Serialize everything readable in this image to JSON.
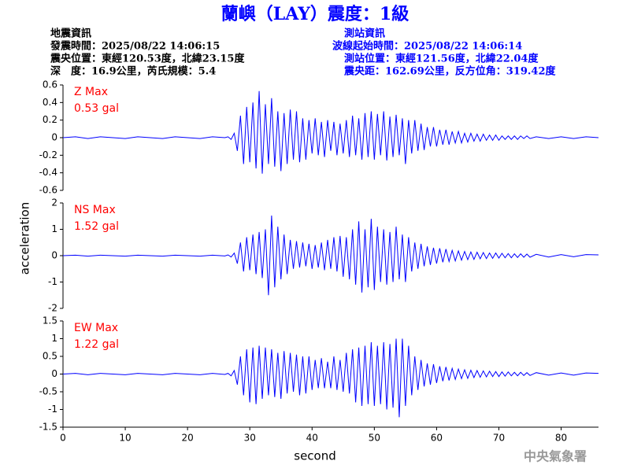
{
  "title": "蘭嶼（LAY）震度：1級",
  "info_left": [
    "地震資訊",
    "發震時間：2025/08/22 14:06:15",
    "震央位置：東經120.53度，北緯23.15度",
    "深　度：16.9公里，芮氏規模：5.4"
  ],
  "info_right": [
    "測站資訊",
    "波線起始時間：2025/08/22 14:06:14",
    "測站位置：東經121.56度，北緯22.04度",
    "震央距：162.69公里，反方位角：319.42度"
  ],
  "ylabel": "acceleration",
  "xlabel": "second",
  "credit": "中央氣象署",
  "chart_data": [
    {
      "type": "line",
      "label": "Z Max",
      "max_label": "0.53 gal",
      "color": "#0000ff",
      "xlim": [
        0,
        86
      ],
      "ylim": [
        -0.6,
        0.6
      ],
      "yticks": [
        -0.6,
        -0.4,
        -0.2,
        0,
        0.2,
        0.4,
        0.6
      ],
      "x": [
        0,
        2,
        4,
        6,
        8,
        10,
        12,
        14,
        16,
        18,
        20,
        22,
        24,
        26,
        26.5,
        27,
        27.5,
        28,
        28.5,
        29,
        29.5,
        30,
        30.5,
        31,
        31.5,
        32,
        32.5,
        33,
        33.5,
        34,
        34.5,
        35,
        35.5,
        36,
        36.5,
        37,
        37.5,
        38,
        38.5,
        39,
        39.5,
        40,
        40.5,
        41,
        41.5,
        42,
        42.5,
        43,
        43.5,
        44,
        44.5,
        45,
        45.5,
        46,
        46.5,
        47,
        47.5,
        48,
        48.5,
        49,
        49.5,
        50,
        50.5,
        51,
        51.5,
        52,
        52.5,
        53,
        53.5,
        54,
        54.5,
        55,
        55.5,
        56,
        56.5,
        57,
        57.5,
        58,
        58.5,
        59,
        59.5,
        60,
        60.5,
        61,
        61.5,
        62,
        62.5,
        63,
        63.5,
        64,
        64.5,
        65,
        65.5,
        66,
        66.5,
        67,
        67.5,
        68,
        68.5,
        69,
        69.5,
        70,
        70.5,
        71,
        71.5,
        72,
        72.5,
        73,
        73.5,
        74,
        74.5,
        75,
        76,
        78,
        80,
        82,
        84,
        86
      ],
      "values": [
        0,
        0.01,
        -0.01,
        0.01,
        0,
        -0.01,
        0.01,
        0,
        -0.01,
        0.01,
        0,
        -0.01,
        0.01,
        0,
        0.01,
        -0.02,
        0.05,
        -0.15,
        0.25,
        -0.3,
        0.35,
        -0.28,
        0.4,
        -0.35,
        0.53,
        -0.41,
        0.38,
        -0.3,
        0.45,
        -0.33,
        0.3,
        -0.38,
        0.28,
        -0.3,
        0.32,
        -0.25,
        0.3,
        -0.28,
        0.22,
        -0.25,
        0.2,
        -0.18,
        0.22,
        -0.2,
        0.18,
        -0.22,
        0.2,
        -0.15,
        0.18,
        -0.2,
        0.16,
        -0.18,
        0.2,
        -0.22,
        0.25,
        -0.2,
        0.22,
        -0.25,
        0.28,
        -0.22,
        0.3,
        -0.25,
        0.27,
        -0.2,
        0.3,
        -0.26,
        0.24,
        -0.22,
        0.26,
        -0.2,
        0.22,
        -0.3,
        0.2,
        -0.18,
        0.2,
        -0.15,
        0.16,
        -0.14,
        0.12,
        -0.1,
        0.12,
        -0.1,
        0.09,
        -0.08,
        0.09,
        -0.08,
        0.07,
        -0.06,
        0.07,
        -0.06,
        0.05,
        -0.05,
        0.05,
        -0.04,
        0.04,
        -0.04,
        0.04,
        -0.03,
        0.03,
        -0.03,
        0.03,
        -0.03,
        0.02,
        -0.02,
        0.02,
        -0.02,
        0.02,
        -0.02,
        0.02,
        -0.01,
        0.02,
        -0.01,
        0.01,
        -0.01,
        0.01,
        -0.01,
        0.01,
        0
      ]
    },
    {
      "type": "line",
      "label": "NS Max",
      "max_label": "1.52 gal",
      "color": "#0000ff",
      "xlim": [
        0,
        86
      ],
      "ylim": [
        -2,
        2
      ],
      "yticks": [
        -2,
        -1,
        0,
        1,
        2
      ],
      "x": [
        0,
        2,
        4,
        6,
        8,
        10,
        12,
        14,
        16,
        18,
        20,
        22,
        24,
        26,
        26.5,
        27,
        27.5,
        28,
        28.5,
        29,
        29.5,
        30,
        30.5,
        31,
        31.5,
        32,
        32.5,
        33,
        33.5,
        34,
        34.5,
        35,
        35.5,
        36,
        36.5,
        37,
        37.5,
        38,
        38.5,
        39,
        39.5,
        40,
        40.5,
        41,
        41.5,
        42,
        42.5,
        43,
        43.5,
        44,
        44.5,
        45,
        45.5,
        46,
        46.5,
        47,
        47.5,
        48,
        48.5,
        49,
        49.5,
        50,
        50.5,
        51,
        51.5,
        52,
        52.5,
        53,
        53.5,
        54,
        54.5,
        55,
        55.5,
        56,
        56.5,
        57,
        57.5,
        58,
        58.5,
        59,
        59.5,
        60,
        60.5,
        61,
        61.5,
        62,
        62.5,
        63,
        63.5,
        64,
        64.5,
        65,
        65.5,
        66,
        66.5,
        67,
        67.5,
        68,
        68.5,
        69,
        69.5,
        70,
        70.5,
        71,
        71.5,
        72,
        72.5,
        73,
        73.5,
        74,
        74.5,
        75,
        76,
        78,
        80,
        82,
        84,
        86
      ],
      "values": [
        0,
        0.02,
        -0.02,
        0.02,
        0,
        -0.02,
        0.02,
        0,
        -0.02,
        0.02,
        0,
        -0.02,
        0.02,
        -0.01,
        0.03,
        -0.05,
        0.1,
        -0.3,
        0.5,
        -0.6,
        0.7,
        -0.55,
        0.8,
        -0.7,
        0.9,
        -0.85,
        1.0,
        -1.5,
        1.52,
        -1.2,
        1.1,
        -0.9,
        0.8,
        -0.7,
        0.6,
        -0.5,
        0.55,
        -0.45,
        0.5,
        -0.4,
        0.45,
        -0.5,
        0.4,
        -0.45,
        0.5,
        -0.55,
        0.6,
        -0.5,
        0.7,
        -0.6,
        0.75,
        -0.8,
        0.7,
        -0.9,
        1.0,
        -1.1,
        1.3,
        -1.4,
        1.0,
        -1.2,
        1.4,
        -1.3,
        1.1,
        -1.0,
        1.0,
        -1.1,
        0.9,
        -1.0,
        1.1,
        -0.9,
        0.8,
        -1.0,
        0.7,
        -0.6,
        0.5,
        -0.5,
        0.45,
        -0.4,
        0.35,
        -0.35,
        0.3,
        -0.3,
        0.28,
        -0.25,
        0.25,
        -0.22,
        0.2,
        -0.2,
        0.18,
        -0.17,
        0.16,
        -0.15,
        0.14,
        -0.14,
        0.13,
        -0.12,
        0.12,
        -0.11,
        0.1,
        -0.1,
        0.1,
        -0.09,
        0.09,
        -0.08,
        0.08,
        -0.08,
        0.07,
        -0.07,
        0.07,
        -0.06,
        0.06,
        -0.06,
        0.05,
        -0.05,
        0.04,
        -0.04,
        0.04,
        0.03
      ]
    },
    {
      "type": "line",
      "label": "EW Max",
      "max_label": "1.22 gal",
      "color": "#0000ff",
      "xlim": [
        0,
        86
      ],
      "ylim": [
        -1.5,
        1.5
      ],
      "yticks": [
        -1.5,
        -1,
        -0.5,
        0,
        0.5,
        1,
        1.5
      ],
      "xticks": [
        0,
        10,
        20,
        30,
        40,
        50,
        60,
        70,
        80
      ],
      "x": [
        0,
        2,
        4,
        6,
        8,
        10,
        12,
        14,
        16,
        18,
        20,
        22,
        24,
        26,
        26.5,
        27,
        27.5,
        28,
        28.5,
        29,
        29.5,
        30,
        30.5,
        31,
        31.5,
        32,
        32.5,
        33,
        33.5,
        34,
        34.5,
        35,
        35.5,
        36,
        36.5,
        37,
        37.5,
        38,
        38.5,
        39,
        39.5,
        40,
        40.5,
        41,
        41.5,
        42,
        42.5,
        43,
        43.5,
        44,
        44.5,
        45,
        45.5,
        46,
        46.5,
        47,
        47.5,
        48,
        48.5,
        49,
        49.5,
        50,
        50.5,
        51,
        51.5,
        52,
        52.5,
        53,
        53.5,
        54,
        54.5,
        55,
        55.5,
        56,
        56.5,
        57,
        57.5,
        58,
        58.5,
        59,
        59.5,
        60,
        60.5,
        61,
        61.5,
        62,
        62.5,
        63,
        63.5,
        64,
        64.5,
        65,
        65.5,
        66,
        66.5,
        67,
        67.5,
        68,
        68.5,
        69,
        69.5,
        70,
        70.5,
        71,
        71.5,
        72,
        72.5,
        73,
        73.5,
        74,
        74.5,
        75,
        76,
        78,
        80,
        82,
        84,
        86
      ],
      "values": [
        0,
        0.02,
        -0.02,
        0.02,
        0,
        -0.02,
        0.02,
        0,
        -0.02,
        0.02,
        0,
        -0.02,
        0.02,
        -0.01,
        0.02,
        -0.05,
        0.1,
        -0.3,
        0.5,
        -0.6,
        0.7,
        -0.8,
        0.75,
        -0.85,
        0.8,
        -0.7,
        0.75,
        -0.6,
        0.7,
        -0.65,
        0.6,
        -0.7,
        0.65,
        -0.55,
        0.6,
        -0.5,
        0.55,
        -0.6,
        0.5,
        -0.55,
        0.5,
        -0.45,
        0.4,
        -0.4,
        0.45,
        -0.4,
        0.35,
        -0.4,
        0.5,
        -0.45,
        0.4,
        -0.5,
        0.6,
        -0.55,
        0.7,
        -0.8,
        0.75,
        -0.9,
        0.8,
        -0.85,
        0.9,
        -0.9,
        0.8,
        -0.85,
        0.9,
        -1.0,
        0.85,
        -0.95,
        1.0,
        -1.22,
        1.0,
        -0.9,
        0.8,
        -0.6,
        0.5,
        -0.45,
        0.4,
        -0.35,
        0.3,
        -0.3,
        0.28,
        -0.25,
        0.22,
        -0.2,
        0.2,
        -0.18,
        0.16,
        -0.15,
        0.14,
        -0.13,
        0.12,
        -0.12,
        0.11,
        -0.1,
        0.1,
        -0.09,
        0.09,
        -0.08,
        0.08,
        -0.07,
        0.07,
        -0.07,
        0.06,
        -0.06,
        0.06,
        -0.05,
        0.05,
        -0.05,
        0.05,
        -0.04,
        0.04,
        -0.04,
        0.04,
        -0.03,
        0.03,
        -0.03,
        0.03,
        0.02
      ]
    }
  ]
}
